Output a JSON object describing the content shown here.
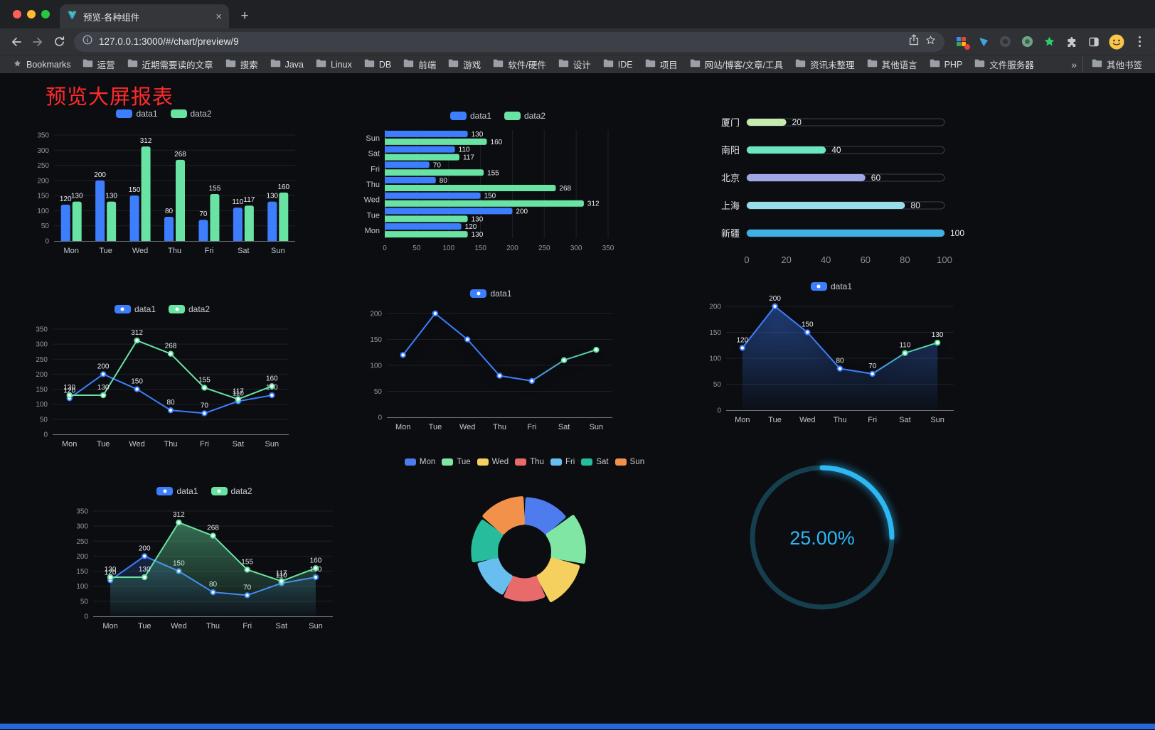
{
  "browser": {
    "tab_title": "预览-各种组件",
    "url": "127.0.0.1:3000/#/chart/preview/9",
    "icons": {
      "new_tab": "+",
      "tab_close": "×",
      "bookmarks_overflow": "»"
    },
    "bookmarks_bar": {
      "bookmarks_label": "Bookmarks",
      "folders": [
        "运营",
        "近期需要读的文章",
        "搜索",
        "Java",
        "Linux",
        "DB",
        "前端",
        "游戏",
        "软件/硬件",
        "设计",
        "IDE",
        "项目",
        "网站/博客/文章/工具",
        "资讯未整理",
        "其他语言",
        "PHP",
        "文件服务器"
      ],
      "other_bookmarks_label": "其他书签"
    }
  },
  "page": {
    "title": "预览大屏报表",
    "title_color": "#FF2B2B",
    "background": "#0B0D11",
    "footer_bar_color": "#2667D9"
  },
  "chart_data": [
    {
      "type": "bar",
      "variant": "vertical-grouped",
      "categories": [
        "Mon",
        "Tue",
        "Wed",
        "Thu",
        "Fri",
        "Sat",
        "Sun"
      ],
      "series": [
        {
          "name": "data1",
          "color": "#3D7EFF",
          "values": [
            120,
            200,
            150,
            80,
            70,
            110,
            130
          ]
        },
        {
          "name": "data2",
          "color": "#69E3A3",
          "values": [
            130,
            130,
            312,
            268,
            155,
            117,
            160
          ]
        }
      ],
      "ylim": [
        0,
        350
      ],
      "ytick_step": 50,
      "legend_position": "top",
      "grid": true
    },
    {
      "type": "bar",
      "variant": "horizontal-grouped",
      "categories": [
        "Mon",
        "Tue",
        "Wed",
        "Thu",
        "Fri",
        "Sat",
        "Sun"
      ],
      "series": [
        {
          "name": "data1",
          "color": "#3D7EFF",
          "values": [
            120,
            200,
            150,
            80,
            70,
            110,
            130
          ]
        },
        {
          "name": "data2",
          "color": "#69E3A3",
          "values": [
            130,
            130,
            312,
            268,
            155,
            117,
            160
          ]
        }
      ],
      "xlim": [
        0,
        350
      ],
      "xtick_step": 50,
      "legend_position": "top",
      "grid": true
    },
    {
      "type": "bar",
      "variant": "progress",
      "categories": [
        "厦门",
        "南阳",
        "北京",
        "上海",
        "新疆"
      ],
      "values": [
        20,
        40,
        60,
        80,
        100
      ],
      "colors": [
        "#C4EBAD",
        "#6BE6C1",
        "#A0A7E6",
        "#96DEE8",
        "#3FB1E3"
      ],
      "xlim": [
        0,
        100
      ],
      "xticks": [
        0,
        20,
        40,
        60,
        80,
        100
      ]
    },
    {
      "type": "line",
      "variant": "two-series-markers",
      "categories": [
        "Mon",
        "Tue",
        "Wed",
        "Thu",
        "Fri",
        "Sat",
        "Sun"
      ],
      "series": [
        {
          "name": "data1",
          "color": "#3D7EFF",
          "values": [
            120,
            200,
            150,
            80,
            70,
            110,
            130
          ]
        },
        {
          "name": "data2",
          "color": "#69E3A3",
          "values": [
            130,
            130,
            312,
            268,
            155,
            117,
            160
          ]
        }
      ],
      "ylim": [
        0,
        350
      ],
      "ytick_step": 50,
      "point_labels": true,
      "legend_position": "top"
    },
    {
      "type": "line",
      "variant": "gradient-single",
      "categories": [
        "Mon",
        "Tue",
        "Wed",
        "Thu",
        "Fri",
        "Sat",
        "Sun"
      ],
      "series": [
        {
          "name": "data1",
          "color": "#3D7EFF",
          "color_end": "#5BE49B",
          "values": [
            120,
            200,
            150,
            80,
            70,
            110,
            130
          ],
          "shadow": true
        }
      ],
      "ylim": [
        0,
        200
      ],
      "ytick_step": 50,
      "point_labels": false,
      "legend_position": "top"
    },
    {
      "type": "area",
      "variant": "single",
      "categories": [
        "Mon",
        "Tue",
        "Wed",
        "Thu",
        "Fri",
        "Sat",
        "Sun"
      ],
      "series": [
        {
          "name": "data1",
          "color": "#3D7EFF",
          "color_end": "#5BE49B",
          "values": [
            120,
            200,
            150,
            80,
            70,
            110,
            130
          ],
          "area": true,
          "shadow": true
        }
      ],
      "ylim": [
        0,
        200
      ],
      "ytick_step": 50,
      "point_labels": true,
      "legend_position": "top"
    },
    {
      "type": "area",
      "variant": "two-series",
      "categories": [
        "Mon",
        "Tue",
        "Wed",
        "Thu",
        "Fri",
        "Sat",
        "Sun"
      ],
      "series": [
        {
          "name": "data1",
          "color": "#3D7EFF",
          "values": [
            120,
            200,
            150,
            80,
            70,
            110,
            130
          ],
          "area": true
        },
        {
          "name": "data2",
          "color": "#69E3A3",
          "values": [
            130,
            130,
            312,
            268,
            155,
            117,
            160
          ],
          "area": true
        }
      ],
      "ylim": [
        0,
        350
      ],
      "ytick_step": 50,
      "point_labels": true,
      "legend_position": "top"
    },
    {
      "type": "pie",
      "variant": "rose-donut",
      "categories": [
        "Mon",
        "Tue",
        "Wed",
        "Thu",
        "Fri",
        "Sat",
        "Sun"
      ],
      "values": [
        120,
        200,
        150,
        80,
        70,
        110,
        130
      ],
      "colors": [
        "#4E7CEE",
        "#7FE7A3",
        "#F5D05F",
        "#E96A6A",
        "#69BEF0",
        "#27BD9C",
        "#F2924A"
      ],
      "legend_position": "top"
    },
    {
      "type": "gauge",
      "variant": "ring-progress",
      "value": 25,
      "max": 100,
      "value_label": "25.00%",
      "color": "#2DB8F4",
      "track_color": "#163F4E"
    }
  ]
}
